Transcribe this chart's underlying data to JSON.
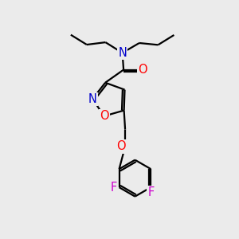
{
  "bg_color": "#ebebeb",
  "atom_colors": {
    "C": "#000000",
    "N": "#0000cc",
    "O": "#ff0000",
    "F": "#cc00cc",
    "O_isoxazole": "#ff0000",
    "N_isoxazole": "#0000cc"
  },
  "line_color": "#000000",
  "line_width": 1.6,
  "font_size": 10.5
}
